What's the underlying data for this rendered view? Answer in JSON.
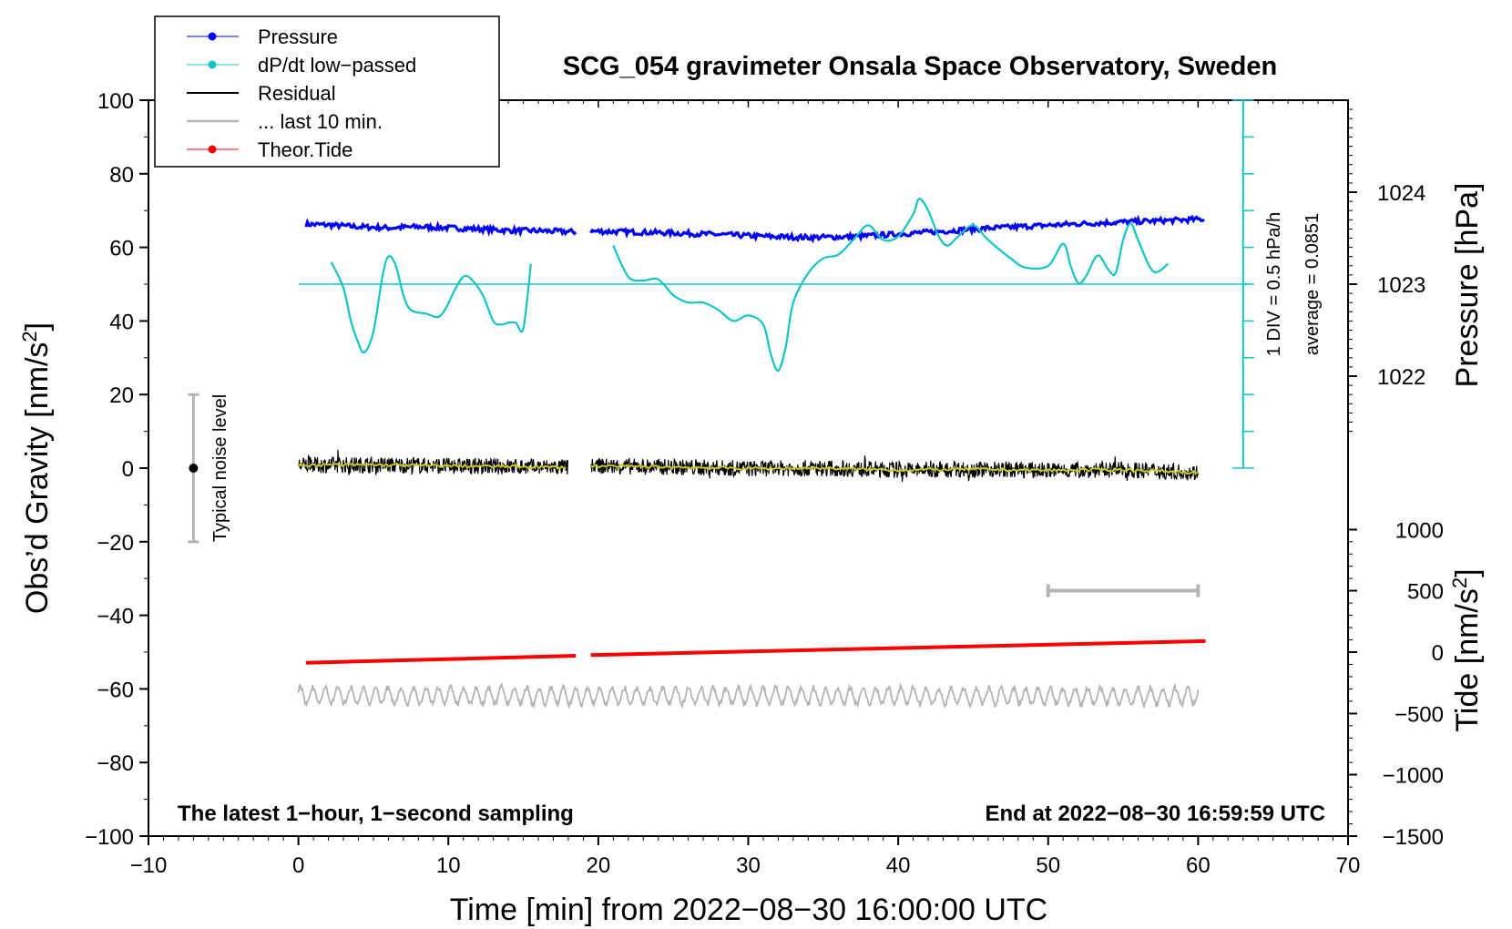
{
  "chart_data": {
    "type": "line",
    "title": "SCG_054 gravimeter Onsala Space Observatory, Sweden",
    "xlabel": "Time [min] from 2022−08−30 16:00:00 UTC",
    "ylabel_main": "Obs’d Gravity [nm/s",
    "ylabel_main_sup": "2",
    "ylabel_main_end": "]",
    "ylabel_pressure": "Pressure [hPa]",
    "ylabel_tide": "Tide [nm/s",
    "ylabel_tide_sup": "2",
    "ylabel_tide_end": "]",
    "xlim": [
      -10,
      70
    ],
    "ylim": [
      -100,
      100
    ],
    "x_ticks": [
      -10,
      0,
      10,
      20,
      30,
      40,
      50,
      60,
      70
    ],
    "x_tick_labels": [
      "−10",
      "0",
      "10",
      "20",
      "30",
      "40",
      "50",
      "60",
      "70"
    ],
    "y_ticks": [
      -100,
      -80,
      -60,
      -40,
      -20,
      0,
      20,
      40,
      60,
      80,
      100
    ],
    "y_tick_labels": [
      "−100",
      "−80",
      "−60",
      "−40",
      "−20",
      "0",
      "20",
      "40",
      "60",
      "80",
      "100"
    ],
    "pressure_ticks": [
      {
        "value": 1024,
        "label": "1024",
        "y_main": 75
      },
      {
        "value": 1023,
        "label": "1023",
        "y_main": 50
      },
      {
        "value": 1022,
        "label": "1022",
        "y_main": 25
      }
    ],
    "tide_ticks": [
      {
        "value": 1000,
        "label": "1000",
        "y_main": -16.7
      },
      {
        "value": 500,
        "label": "500",
        "y_main": -33.3
      },
      {
        "value": 0,
        "label": "0",
        "y_main": -50
      },
      {
        "value": -500,
        "label": "−500",
        "y_main": -66.7
      },
      {
        "value": -1000,
        "label": "−1000",
        "y_main": -83.3
      },
      {
        "value": -1500,
        "label": "−1500",
        "y_main": -100
      }
    ],
    "legend": [
      {
        "label": "Pressure",
        "color": "#0000ff",
        "marker": true
      },
      {
        "label": "dP/dt low−passed",
        "color": "#11c5c5",
        "marker": true
      },
      {
        "label": "Residual",
        "color": "#000000",
        "marker": false
      },
      {
        "label": "... last 10 min.",
        "color": "#b4b4b4",
        "marker": false
      },
      {
        "label": "Theor.Tide",
        "color": "#ff0000",
        "marker": true
      }
    ],
    "scale_bar": {
      "label1": "1 DIV = 0.5 hPa/h",
      "label2": "average = 0.0851",
      "x": 63,
      "y_top": 100,
      "y_bottom": 0,
      "divisions": 10
    },
    "noise_bar": {
      "label": "Typical noise level",
      "x": -7,
      "y_center": 0,
      "y_min": -20,
      "y_max": 20
    },
    "gray_bar": {
      "x_start": 50,
      "x_end": 60,
      "y": -33.3
    },
    "dpdt_zero_line": 50,
    "annotation_left": "The latest 1−hour, 1−second sampling",
    "annotation_right": "End at 2022−08−30 16:59:59 UTC",
    "series": [
      {
        "name": "Pressure",
        "color": "#0000ff",
        "segments": [
          [
            [
              0.5,
              66.3
            ],
            [
              2,
              66.1
            ],
            [
              4,
              65.6
            ],
            [
              6,
              65.3
            ],
            [
              8,
              65.6
            ],
            [
              10,
              65.3
            ],
            [
              12,
              65.0
            ],
            [
              14,
              64.6
            ],
            [
              16,
              64.5
            ],
            [
              18.5,
              64.2
            ]
          ],
          [
            [
              19.5,
              64.4
            ],
            [
              22,
              64.2
            ],
            [
              25,
              63.9
            ],
            [
              28,
              63.5
            ],
            [
              31,
              63.0
            ],
            [
              34,
              62.7
            ],
            [
              37,
              62.9
            ],
            [
              40,
              63.6
            ],
            [
              43,
              64.4
            ],
            [
              46,
              65.2
            ],
            [
              49,
              65.8
            ],
            [
              52,
              66.4
            ],
            [
              55,
              66.9
            ],
            [
              58,
              67.3
            ],
            [
              60.5,
              67.7
            ]
          ]
        ]
      },
      {
        "name": "dP/dt low-passed",
        "color": "#11c5c5",
        "segments": [
          [
            [
              2.2,
              56
            ],
            [
              3,
              49
            ],
            [
              3.5,
              40
            ],
            [
              4,
              34
            ],
            [
              4.4,
              31.5
            ],
            [
              5,
              37
            ],
            [
              5.6,
              52
            ],
            [
              6,
              57.5
            ],
            [
              6.5,
              55
            ],
            [
              7,
              47
            ],
            [
              7.5,
              43
            ],
            [
              8.5,
              42
            ],
            [
              9.5,
              41.5
            ],
            [
              10.5,
              49
            ],
            [
              11,
              52
            ],
            [
              11.5,
              51.5
            ],
            [
              12.3,
              47
            ],
            [
              13,
              40
            ],
            [
              13.5,
              39
            ],
            [
              14,
              39.5
            ],
            [
              14.5,
              39.5
            ],
            [
              15,
              38
            ],
            [
              15.5,
              55.5
            ]
          ],
          [
            [
              21,
              60.5
            ],
            [
              22,
              52
            ],
            [
              23,
              51
            ],
            [
              24,
              51.3
            ],
            [
              25,
              47
            ],
            [
              26,
              45
            ],
            [
              27,
              45
            ],
            [
              28,
              43
            ],
            [
              29,
              40
            ],
            [
              30,
              41.5
            ],
            [
              31,
              39
            ],
            [
              31.5,
              31
            ],
            [
              32,
              26.5
            ],
            [
              32.5,
              33
            ],
            [
              33,
              45
            ],
            [
              34,
              53
            ],
            [
              35,
              57
            ],
            [
              36,
              58
            ],
            [
              37,
              62
            ],
            [
              38,
              66
            ],
            [
              39,
              62
            ],
            [
              40,
              63
            ],
            [
              41,
              69
            ],
            [
              41.4,
              73.2
            ],
            [
              42,
              70
            ],
            [
              42.7,
              63
            ],
            [
              43.3,
              60.5
            ],
            [
              44,
              63
            ],
            [
              45,
              66
            ],
            [
              46,
              62
            ],
            [
              47.5,
              57
            ],
            [
              48.5,
              54.5
            ],
            [
              50,
              55
            ],
            [
              51,
              61
            ],
            [
              51.5,
              55
            ],
            [
              52,
              50.3
            ],
            [
              52.5,
              52
            ],
            [
              53.3,
              57.8
            ],
            [
              54,
              54
            ],
            [
              54.5,
              53
            ],
            [
              55,
              62
            ],
            [
              55.5,
              66.5
            ],
            [
              56,
              62
            ],
            [
              57,
              53.5
            ],
            [
              58,
              55.5
            ]
          ]
        ]
      },
      {
        "name": "Residual",
        "color": "#000000",
        "noise_amp": 2.2,
        "segments": [
          [
            [
              0.0,
              0.8
            ],
            [
              5,
              0.9
            ],
            [
              10,
              0.6
            ],
            [
              15,
              0.4
            ],
            [
              18,
              0.2
            ]
          ],
          [
            [
              19.5,
              0.6
            ],
            [
              25,
              0.3
            ],
            [
              30,
              -0.1
            ],
            [
              35,
              0.0
            ],
            [
              40,
              -0.5
            ],
            [
              45,
              -0.3
            ],
            [
              50,
              -0.6
            ],
            [
              55,
              -0.4
            ],
            [
              60,
              -1.2
            ]
          ]
        ]
      },
      {
        "name": "Residual smoothed",
        "color": "#c9c918",
        "segments": [
          [
            [
              0.0,
              0.8
            ],
            [
              5,
              0.9
            ],
            [
              10,
              0.6
            ],
            [
              15,
              0.4
            ],
            [
              18,
              0.2
            ]
          ],
          [
            [
              19.5,
              0.6
            ],
            [
              25,
              0.3
            ],
            [
              30,
              -0.1
            ],
            [
              35,
              0.0
            ],
            [
              40,
              -0.5
            ],
            [
              45,
              -0.3
            ],
            [
              50,
              -0.6
            ],
            [
              55,
              -0.4
            ],
            [
              60,
              -1.2
            ]
          ]
        ]
      },
      {
        "name": "Theor.Tide",
        "color": "#ff0000",
        "segments": [
          [
            [
              0.5,
              -52.9
            ],
            [
              18.5,
              -51.0
            ]
          ],
          [
            [
              19.5,
              -50.8
            ],
            [
              60.5,
              -47.0
            ]
          ]
        ]
      },
      {
        "name": "... last 10 min.",
        "color": "#b4b4b4",
        "center": -61.8,
        "amp": 2.8,
        "segments": [
          [
            [
              0.0,
              -61.8
            ],
            [
              60,
              -62.0
            ]
          ]
        ]
      }
    ]
  }
}
